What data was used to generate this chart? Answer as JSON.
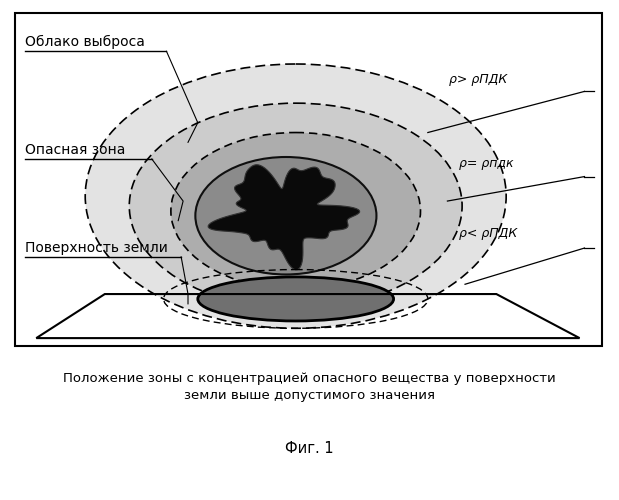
{
  "title_caption": "Положение зоны с концентрацией опасного вещества у поверхности\nземли выше допустимого значения",
  "fig_label": "Фиг. 1",
  "label_oblako": "Облако выброса",
  "label_opasnaya": "Опасная зона",
  "label_pov": "Поверхность земли",
  "label_rho_gt": "ρ> ρПДК",
  "label_rho_eq": "ρ= ρпдк",
  "label_rho_lt": "ρ< ρПДК",
  "bg_color": "#ffffff"
}
